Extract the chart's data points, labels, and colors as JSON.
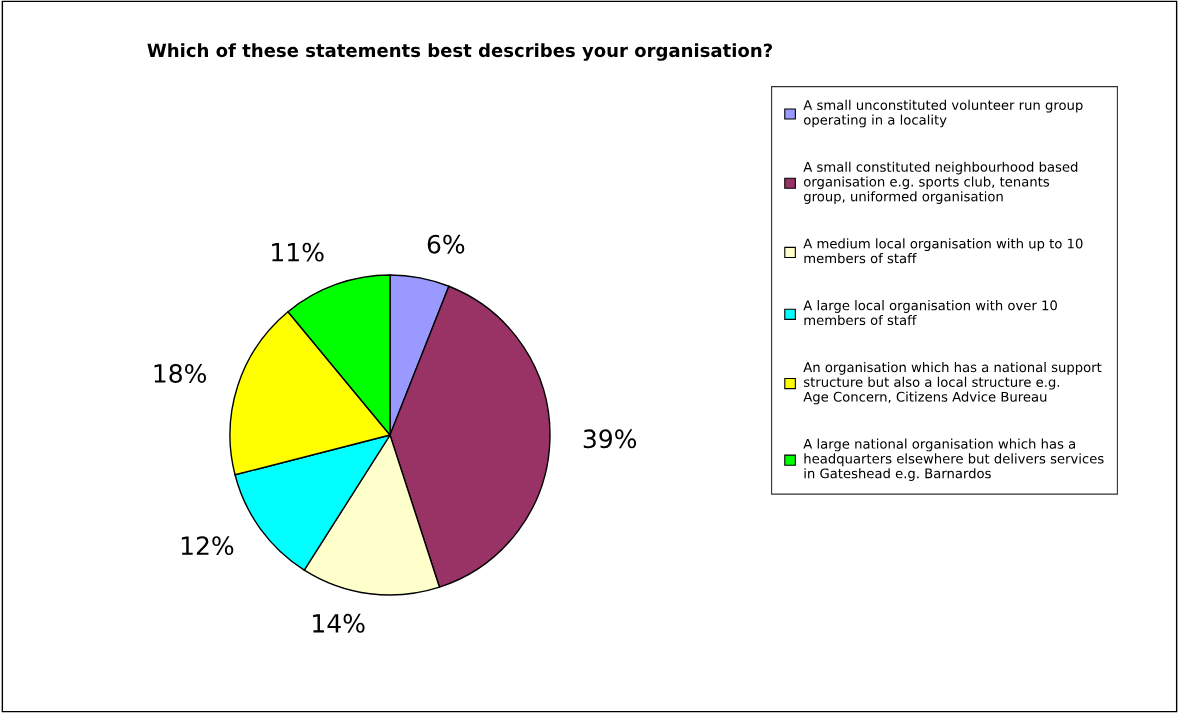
{
  "chart_data": {
    "type": "pie",
    "title": "Which of these statements best describes your organisation?",
    "categories": [
      "A small unconstituted volunteer run group operating in a locality",
      "A small constituted neighbourhood based organisation e.g. sports club, tenants group, uniformed organisation",
      "A medium local organisation with up to 10 members of staff",
      "A large local organisation with over 10 members of staff",
      "An organisation which has a national support structure but also a local structure e.g. Age Concern, Citizens Advice Bureau",
      "A large national organisation which has a headquarters elsewhere but delivers services in Gateshead e.g. Barnardos"
    ],
    "values": [
      6,
      39,
      14,
      12,
      18,
      11
    ],
    "value_labels": [
      "6%",
      "39%",
      "14%",
      "12%",
      "18%",
      "11%"
    ],
    "colors": [
      "#9999ff",
      "#993366",
      "#ffffcc",
      "#00ffff",
      "#ffff00",
      "#00ff00"
    ],
    "legend": "right"
  }
}
